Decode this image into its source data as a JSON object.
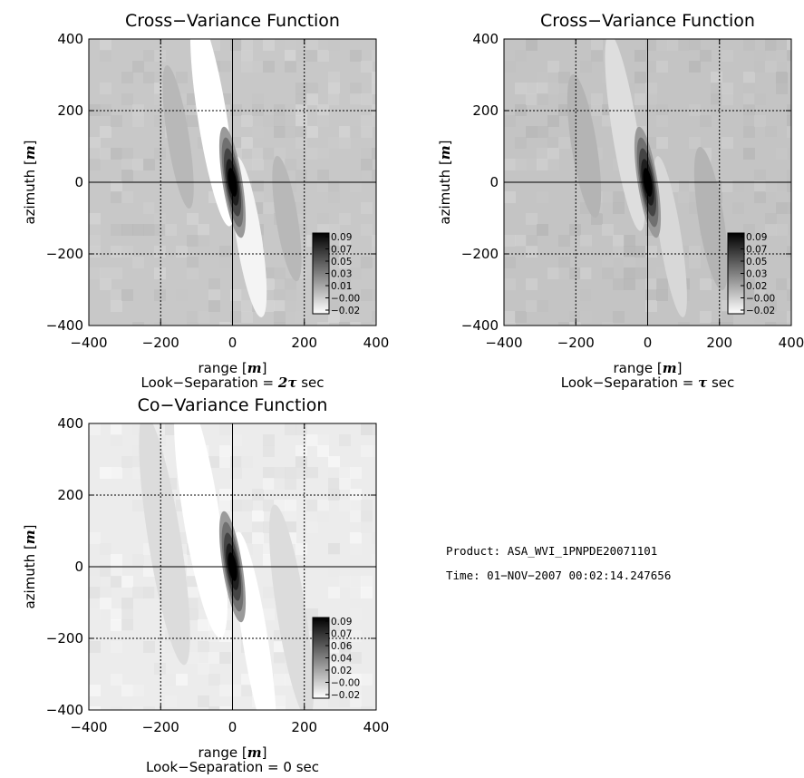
{
  "chart_data": [
    {
      "type": "heatmap",
      "title": "Cross−Variance Function",
      "xlabel_prefix": "range",
      "xlabel_unit": "m",
      "ylabel_prefix": "azimuth",
      "ylabel_unit": "m",
      "subtitle_text": "Look−Separation = ",
      "subtitle_symbol": "2τ",
      "subtitle_suffix": " sec",
      "xlim": [
        -400,
        400
      ],
      "ylim": [
        -400,
        400
      ],
      "xticks": [
        "−400",
        "−200",
        "0",
        "200",
        "400"
      ],
      "yticks": [
        "400",
        "200",
        "0",
        "−200",
        "−400"
      ],
      "grid": true,
      "background": "#c8c8c8",
      "colorbar_labels": [
        "0.09",
        "0.07",
        "0.05",
        "0.03",
        "0.01",
        "−0.00",
        "−0.02"
      ],
      "colorbar_range": [
        -0.02,
        0.09
      ],
      "peak_value": 0.09
    },
    {
      "type": "heatmap",
      "title": "Cross−Variance Function",
      "xlabel_prefix": "range",
      "xlabel_unit": "m",
      "ylabel_prefix": "azimuth",
      "ylabel_unit": "m",
      "subtitle_text": "Look−Separation = ",
      "subtitle_symbol": "τ",
      "subtitle_suffix": " sec",
      "xlim": [
        -400,
        400
      ],
      "ylim": [
        -400,
        400
      ],
      "xticks": [
        "−400",
        "−200",
        "0",
        "200",
        "400"
      ],
      "yticks": [
        "400",
        "200",
        "0",
        "−200",
        "−400"
      ],
      "grid": true,
      "background": "#c4c4c4",
      "colorbar_labels": [
        "0.09",
        "0.07",
        "0.05",
        "0.03",
        "0.02",
        "−0.00",
        "−0.02"
      ],
      "colorbar_range": [
        -0.02,
        0.09
      ],
      "peak_value": 0.09
    },
    {
      "type": "heatmap",
      "title": "Co−Variance Function",
      "xlabel_prefix": "range",
      "xlabel_unit": "m",
      "ylabel_prefix": "azimuth",
      "ylabel_unit": "m",
      "subtitle_text": "Look−Separation = 0 sec",
      "subtitle_symbol": "",
      "subtitle_suffix": "",
      "xlim": [
        -400,
        400
      ],
      "ylim": [
        -400,
        400
      ],
      "xticks": [
        "−400",
        "−200",
        "0",
        "200",
        "400"
      ],
      "yticks": [
        "400",
        "200",
        "0",
        "−200",
        "−400"
      ],
      "grid": true,
      "background": "#ececec",
      "colorbar_labels": [
        "0.09",
        "0.07",
        "0.06",
        "0.04",
        "0.02",
        "−0.00",
        "−0.02"
      ],
      "colorbar_range": [
        -0.02,
        0.09
      ],
      "peak_value": 0.09
    }
  ],
  "info": {
    "product": "Product: ASA_WVI_1PNPDE20071101",
    "time": "Time: 01−NOV−2007 00:02:14.247656"
  }
}
